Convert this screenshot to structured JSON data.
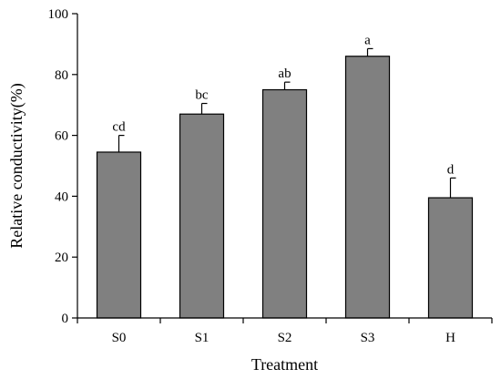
{
  "chart_data": {
    "type": "bar",
    "categories": [
      "S0",
      "S1",
      "S2",
      "S3",
      "H"
    ],
    "values": [
      54.5,
      67,
      75,
      86,
      39.5
    ],
    "errors": [
      5.5,
      3.5,
      2.5,
      2.5,
      6.5
    ],
    "significance": [
      "cd",
      "bc",
      "ab",
      "a",
      "d"
    ],
    "xlabel": "Treatment",
    "ylabel": "Relative conductivity(%)",
    "ylim": [
      0,
      100
    ],
    "yticks": [
      0,
      20,
      40,
      60,
      80,
      100
    ],
    "grid": false,
    "legend": "none",
    "bar_color": "#808080",
    "edge_color": "#000000"
  }
}
